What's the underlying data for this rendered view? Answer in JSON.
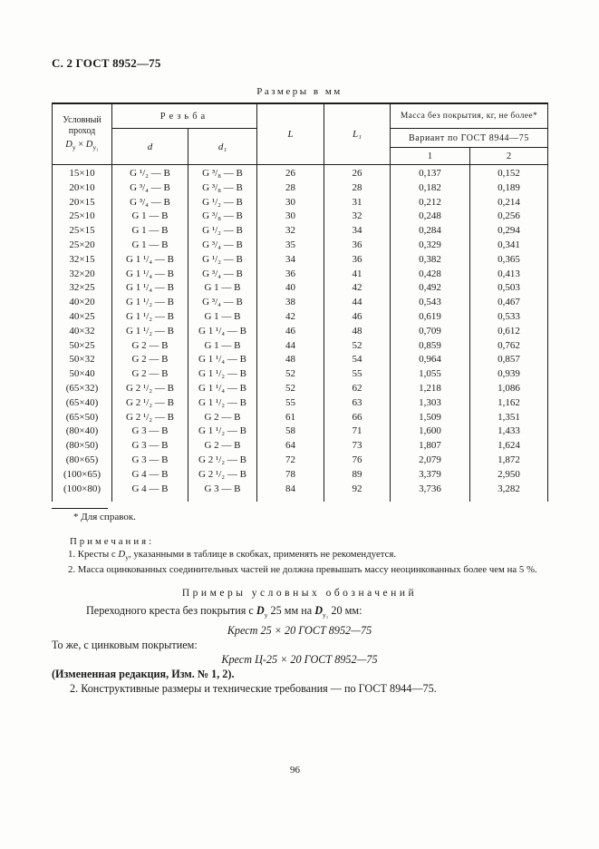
{
  "page": {
    "doc_header": "С. 2 ГОСТ 8952—75",
    "units_note": "Размеры в мм",
    "page_number": "96"
  },
  "table": {
    "header": {
      "pass_line1": "Условный",
      "pass_line2": "проход",
      "pass_base1": "D",
      "pass_sub1": "у",
      "pass_times": "×",
      "pass_base2": "D",
      "pass_sub2": "у₁",
      "thread_group": "Резьба",
      "d": "d",
      "d1": "d₁",
      "L": "L",
      "L1": "L₁",
      "mass_group": "Масса без покрытия, кг, не более*",
      "variant_group": "Вариант по ГОСТ 8944—75",
      "variant_1": "1",
      "variant_2": "2"
    },
    "rows": [
      {
        "pass": "15×10",
        "d": "G ¹/₂ — В",
        "d1": "G ³/₈ — В",
        "L": "26",
        "L1": "26",
        "m1": "0,137",
        "m2": "0,152"
      },
      {
        "pass": "20×10",
        "d": "G ³/₄ — В",
        "d1": "G ³/₈ — В",
        "L": "28",
        "L1": "28",
        "m1": "0,182",
        "m2": "0,189"
      },
      {
        "pass": "20×15",
        "d": "G ³/₄ — В",
        "d1": "G ¹/₂ — В",
        "L": "30",
        "L1": "31",
        "m1": "0,212",
        "m2": "0,214"
      },
      {
        "pass": "25×10",
        "d": "G 1 — В",
        "d1": "G ³/₈ — В",
        "L": "30",
        "L1": "32",
        "m1": "0,248",
        "m2": "0,256"
      },
      {
        "pass": "25×15",
        "d": "G 1 — В",
        "d1": "G ¹/₂ — В",
        "L": "32",
        "L1": "34",
        "m1": "0,284",
        "m2": "0,294"
      },
      {
        "pass": "25×20",
        "d": "G 1 — В",
        "d1": "G ³/₄ — В",
        "L": "35",
        "L1": "36",
        "m1": "0,329",
        "m2": "0,341"
      },
      {
        "pass": "32×15",
        "d": "G 1 ¹/₄ — В",
        "d1": "G ¹/₂ — В",
        "L": "34",
        "L1": "36",
        "m1": "0,382",
        "m2": "0,365"
      },
      {
        "pass": "32×20",
        "d": "G 1 ¹/₄ — В",
        "d1": "G ³/₄ — В",
        "L": "36",
        "L1": "41",
        "m1": "0,428",
        "m2": "0,413"
      },
      {
        "pass": "32×25",
        "d": "G 1 ¹/₄ — В",
        "d1": "G 1 — В",
        "L": "40",
        "L1": "42",
        "m1": "0,492",
        "m2": "0,503"
      },
      {
        "pass": "40×20",
        "d": "G 1 ¹/₂ — В",
        "d1": "G ³/₄ — В",
        "L": "38",
        "L1": "44",
        "m1": "0,543",
        "m2": "0,467"
      },
      {
        "pass": "40×25",
        "d": "G 1 ¹/₂ — В",
        "d1": "G 1 — В",
        "L": "42",
        "L1": "46",
        "m1": "0,619",
        "m2": "0,533"
      },
      {
        "pass": "40×32",
        "d": "G 1 ¹/₂ — В",
        "d1": "G 1 ¹/₄ — В",
        "L": "46",
        "L1": "48",
        "m1": "0,709",
        "m2": "0,612"
      },
      {
        "pass": "50×25",
        "d": "G 2 — В",
        "d1": "G 1 — В",
        "L": "44",
        "L1": "52",
        "m1": "0,859",
        "m2": "0,762"
      },
      {
        "pass": "50×32",
        "d": "G 2 — В",
        "d1": "G 1 ¹/₄ — В",
        "L": "48",
        "L1": "54",
        "m1": "0,964",
        "m2": "0,857"
      },
      {
        "pass": "50×40",
        "d": "G 2 — В",
        "d1": "G 1 ¹/₂ — В",
        "L": "52",
        "L1": "55",
        "m1": "1,055",
        "m2": "0,939"
      },
      {
        "pass": "(65×32)",
        "d": "G 2 ¹/₂ — В",
        "d1": "G 1 ¹/₄ — В",
        "L": "52",
        "L1": "62",
        "m1": "1,218",
        "m2": "1,086"
      },
      {
        "pass": "(65×40)",
        "d": "G 2 ¹/₂ — В",
        "d1": "G 1 ¹/₂ — В",
        "L": "55",
        "L1": "63",
        "m1": "1,303",
        "m2": "1,162"
      },
      {
        "pass": "(65×50)",
        "d": "G 2 ¹/₂ — В",
        "d1": "G 2 — В",
        "L": "61",
        "L1": "66",
        "m1": "1,509",
        "m2": "1,351"
      },
      {
        "pass": "(80×40)",
        "d": "G 3 — В",
        "d1": "G 1 ¹/₂ — В",
        "L": "58",
        "L1": "71",
        "m1": "1,600",
        "m2": "1,433"
      },
      {
        "pass": "(80×50)",
        "d": "G 3 — В",
        "d1": "G 2 — В",
        "L": "64",
        "L1": "73",
        "m1": "1,807",
        "m2": "1,624"
      },
      {
        "pass": "(80×65)",
        "d": "G 3 — В",
        "d1": "G 2 ¹/₂ — В",
        "L": "72",
        "L1": "76",
        "m1": "2,079",
        "m2": "1,872"
      },
      {
        "pass": "(100×65)",
        "d": "G 4 — В",
        "d1": "G 2 ¹/₂ — В",
        "L": "78",
        "L1": "89",
        "m1": "3,379",
        "m2": "2,950"
      },
      {
        "pass": "(100×80)",
        "d": "G 4 — В",
        "d1": "G 3 — В",
        "L": "84",
        "L1": "92",
        "m1": "3,736",
        "m2": "3,282"
      }
    ]
  },
  "footnote": {
    "ref": "* Для справок."
  },
  "notes": {
    "title": "Примечания:",
    "item1_pre": "1. Кресты с ",
    "item1_sym": "D",
    "item1_sub": "у",
    "item1_post": ", указанными в таблице в скобках, применять не рекомендуется.",
    "item2": "2. Масса оцинкованных соединительных частей не должна превышать массу неоцинкованных более чем на 5 %."
  },
  "examples": {
    "title": "Примеры условных обозначений",
    "intro_pre": "Переходного креста без покрытия с ",
    "intro_sym1": "D",
    "intro_sub1": "у",
    "intro_mid": " 25 мм на ",
    "intro_sym2": "D",
    "intro_sub2": "у₁",
    "intro_post": " 20 мм:",
    "example1": "Крест 25 × 20 ГОСТ 8952—75",
    "same_line": "То же, с цинковым покрытием:",
    "example2": "Крест Ц-25 × 20 ГОСТ 8952—75",
    "revision": "(Измененная редакция, Изм. № 1, 2).",
    "item2": "2. Конструктивные размеры и технические требования — по ГОСТ 8944—75."
  }
}
